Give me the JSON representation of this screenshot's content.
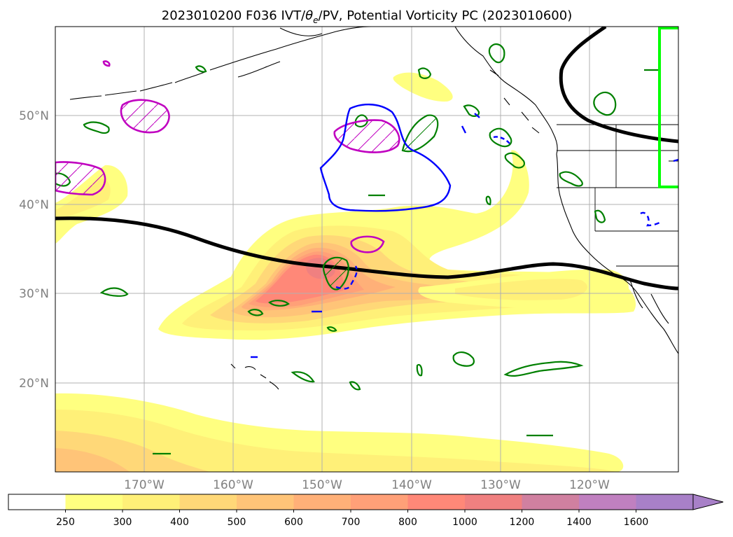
{
  "title": {
    "prefix": "2023010200 F036 IVT/",
    "theta": "θ",
    "theta_sub": "e",
    "suffix": "/PV, Potential Vorticity PC (2023010600)"
  },
  "axes": {
    "lat_labels": [
      "50°N",
      "40°N",
      "30°N",
      "20°N"
    ],
    "lon_labels": [
      "170°W",
      "160°W",
      "150°W",
      "140°W",
      "130°W",
      "120°W"
    ],
    "grid": true
  },
  "colorbar": {
    "labels": [
      "250",
      "300",
      "400",
      "500",
      "600",
      "700",
      "800",
      "1000",
      "1200",
      "1400",
      "1600"
    ],
    "colors": [
      "#ffffff",
      "#ffff80",
      "#fff078",
      "#ffd878",
      "#ffc478",
      "#ffb078",
      "#ffa078",
      "#ff8878",
      "#f08080",
      "#d080a0",
      "#c080c0",
      "#a880c8"
    ],
    "extend": "max"
  },
  "legend_colors": {
    "pv_positive": "#c000c0",
    "pv_green": "#008000",
    "pv_negative": "#0000ff",
    "jet_line": "#000000",
    "target_box": "#00ff00"
  }
}
